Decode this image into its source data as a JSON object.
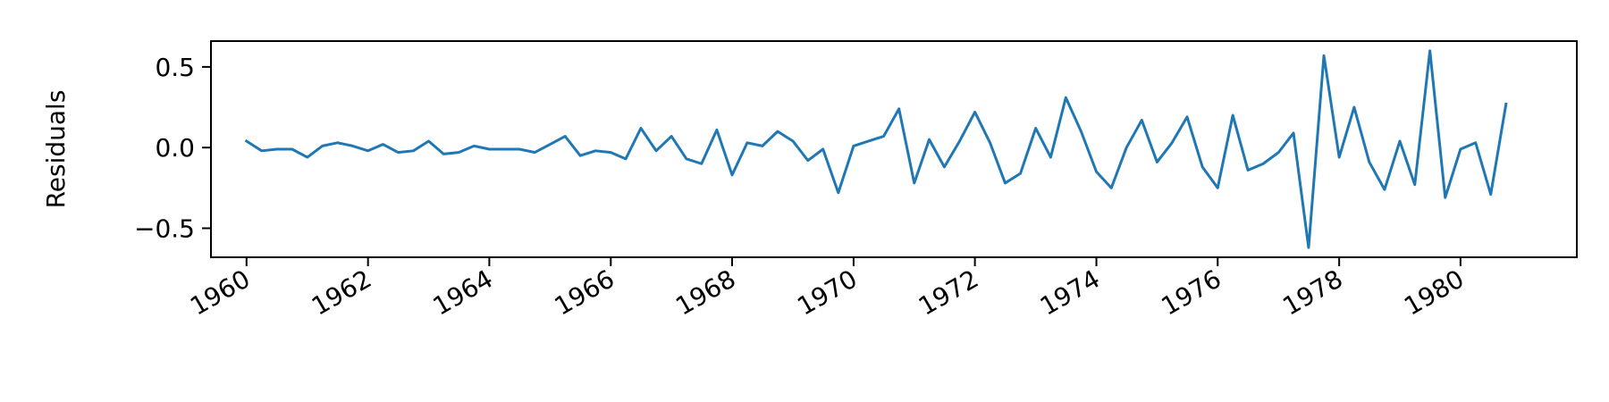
{
  "chart_data": {
    "type": "line",
    "title": "",
    "xlabel": "",
    "ylabel": "Residuals",
    "x_axis_type": "date",
    "xlim": [
      "1959-06-01",
      "1981-12-01"
    ],
    "ylim": [
      -0.68,
      0.66
    ],
    "x_ticks": [
      "1960-01-01",
      "1962-01-01",
      "1964-01-01",
      "1966-01-01",
      "1968-01-01",
      "1970-01-01",
      "1972-01-01",
      "1974-01-01",
      "1976-01-01",
      "1978-01-01",
      "1980-01-01"
    ],
    "x_tick_labels": [
      "1960",
      "1962",
      "1964",
      "1966",
      "1968",
      "1970",
      "1972",
      "1974",
      "1976",
      "1978",
      "1980"
    ],
    "y_ticks": [
      -0.5,
      0.0,
      0.5
    ],
    "y_tick_labels": [
      "−0.5",
      "0.0",
      "0.5"
    ],
    "grid": false,
    "legend": null,
    "series": [
      {
        "color": "#1f77b4",
        "x": [
          "1960-01-01",
          "1960-04-01",
          "1960-07-01",
          "1960-10-01",
          "1961-01-01",
          "1961-04-01",
          "1961-07-01",
          "1961-10-01",
          "1962-01-01",
          "1962-04-01",
          "1962-07-01",
          "1962-10-01",
          "1963-01-01",
          "1963-04-01",
          "1963-07-01",
          "1963-10-01",
          "1964-01-01",
          "1964-04-01",
          "1964-07-01",
          "1964-10-01",
          "1965-01-01",
          "1965-04-01",
          "1965-07-01",
          "1965-10-01",
          "1966-01-01",
          "1966-04-01",
          "1966-07-01",
          "1966-10-01",
          "1967-01-01",
          "1967-04-01",
          "1967-07-01",
          "1967-10-01",
          "1968-01-01",
          "1968-04-01",
          "1968-07-01",
          "1968-10-01",
          "1969-01-01",
          "1969-04-01",
          "1969-07-01",
          "1969-10-01",
          "1970-01-01",
          "1970-04-01",
          "1970-07-01",
          "1970-10-01",
          "1971-01-01",
          "1971-04-01",
          "1971-07-01",
          "1971-10-01",
          "1972-01-01",
          "1972-04-01",
          "1972-07-01",
          "1972-10-01",
          "1973-01-01",
          "1973-04-01",
          "1973-07-01",
          "1973-10-01",
          "1974-01-01",
          "1974-04-01",
          "1974-07-01",
          "1974-10-01",
          "1975-01-01",
          "1975-04-01",
          "1975-07-01",
          "1975-10-01",
          "1976-01-01",
          "1976-04-01",
          "1976-07-01",
          "1976-10-01",
          "1977-01-01",
          "1977-04-01",
          "1977-07-01",
          "1977-10-01",
          "1978-01-01",
          "1978-04-01",
          "1978-07-01",
          "1978-10-01",
          "1979-01-01",
          "1979-04-01",
          "1979-07-01",
          "1979-10-01",
          "1980-01-01",
          "1980-04-01",
          "1980-07-01",
          "1980-10-01"
        ],
        "y": [
          0.04,
          -0.02,
          -0.01,
          -0.01,
          -0.06,
          0.01,
          0.03,
          0.01,
          -0.02,
          0.02,
          -0.03,
          -0.02,
          0.04,
          -0.04,
          -0.03,
          0.01,
          -0.01,
          -0.01,
          -0.01,
          -0.03,
          0.02,
          0.07,
          -0.05,
          -0.02,
          -0.03,
          -0.07,
          0.12,
          -0.02,
          0.07,
          -0.07,
          -0.1,
          0.11,
          -0.17,
          0.03,
          0.01,
          0.1,
          0.04,
          -0.08,
          -0.01,
          -0.28,
          0.01,
          0.04,
          0.07,
          0.24,
          -0.22,
          0.05,
          -0.12,
          0.04,
          0.22,
          0.03,
          -0.22,
          -0.16,
          0.12,
          -0.06,
          0.31,
          0.1,
          -0.15,
          -0.25,
          0.0,
          0.17,
          -0.09,
          0.03,
          0.19,
          -0.12,
          -0.25,
          0.2,
          -0.14,
          -0.1,
          -0.03,
          0.09,
          -0.62,
          0.57,
          -0.06,
          0.25,
          -0.09,
          -0.26,
          0.04,
          -0.23,
          0.6,
          -0.31,
          -0.01,
          0.03,
          -0.29,
          0.27
        ]
      }
    ]
  }
}
